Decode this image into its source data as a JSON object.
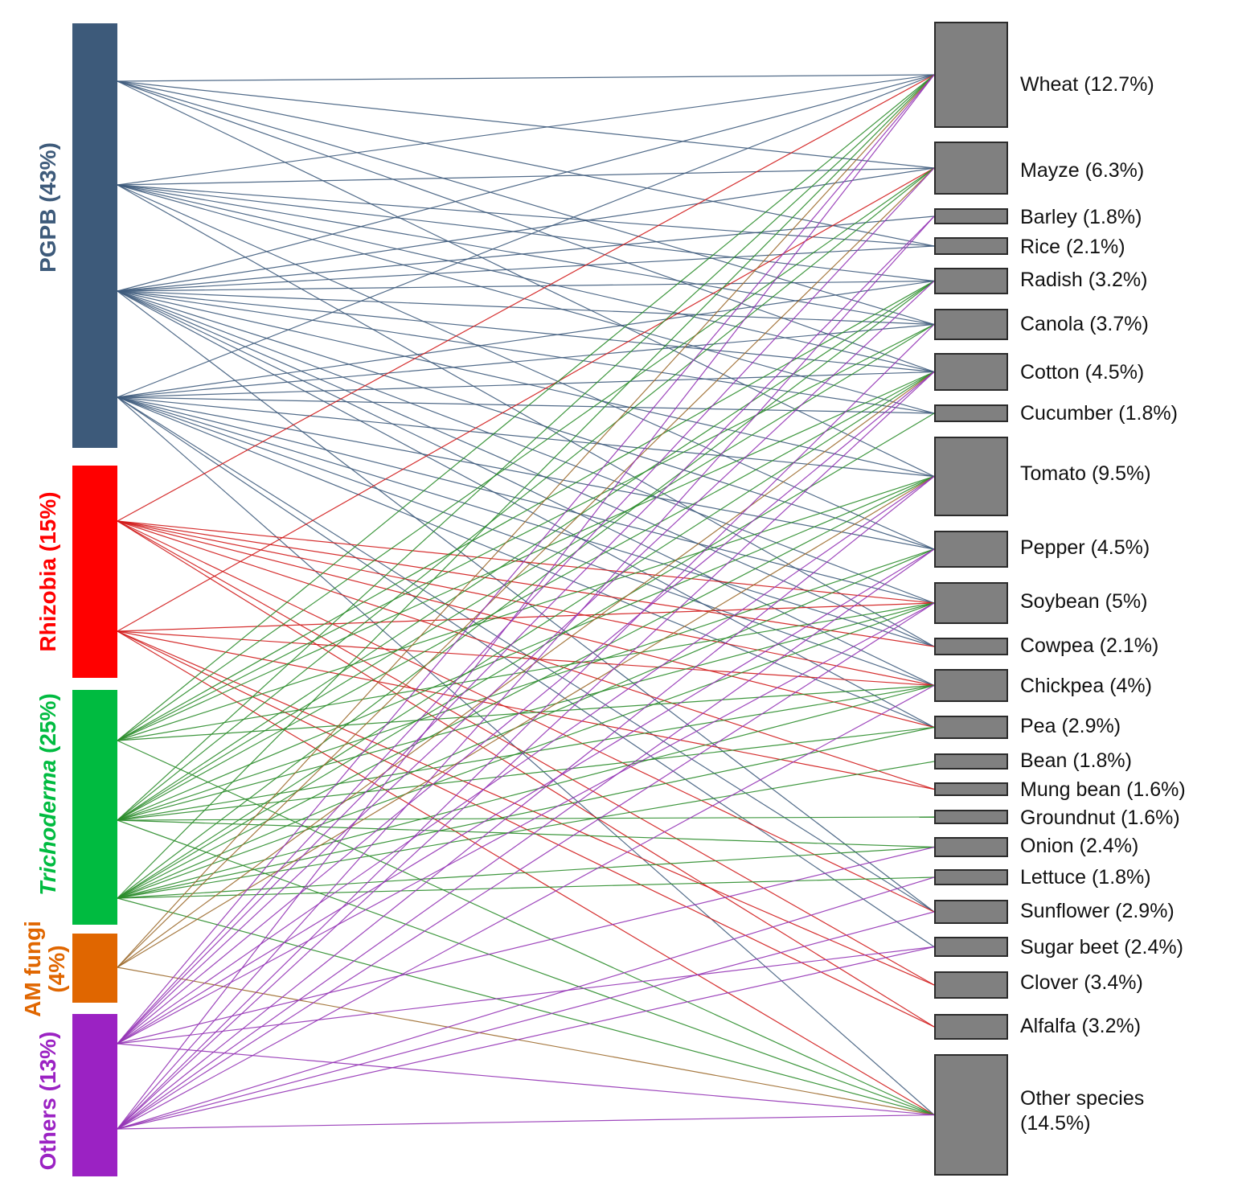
{
  "inoculants": [
    {
      "name": "PGPB",
      "share": "(43%)",
      "color": "#3d5a7a",
      "link_color": "#3e5b7c",
      "links": [
        [
          "Wheat",
          "Mayze",
          "Rice",
          "Canola",
          "Cotton",
          "Tomato"
        ],
        [
          "Wheat",
          "Mayze",
          "Rice",
          "Radish",
          "Canola",
          "Cotton",
          "Cucumber",
          "Pepper",
          "Cowpea"
        ],
        [
          "Wheat",
          "Mayze",
          "Barley",
          "Rice",
          "Radish",
          "Canola",
          "Cotton",
          "Cucumber",
          "Tomato",
          "Pepper",
          "Soybean",
          "Cowpea",
          "Chickpea",
          "Pea",
          "Sunflower"
        ],
        [
          "Wheat",
          "Radish",
          "Canola",
          "Cotton",
          "Cucumber",
          "Tomato",
          "Pepper",
          "Soybean",
          "Cowpea",
          "Chickpea",
          "Pea",
          "Sunflower",
          "Sugar beet",
          "Other species"
        ]
      ]
    },
    {
      "name": "Rhizobia",
      "share": "(15%)",
      "color": "#ff0000",
      "link_color": "#d01818",
      "links": [
        [
          "Wheat",
          "Soybean",
          "Cowpea",
          "Chickpea",
          "Pea",
          "Mung bean",
          "Sunflower",
          "Clover",
          "Alfalfa"
        ],
        [
          "Mayze",
          "Soybean",
          "Chickpea",
          "Mung bean",
          "Clover",
          "Alfalfa",
          "Other species"
        ]
      ]
    },
    {
      "name": "Trichoderma",
      "share": "(25%)",
      "color": "#00bb40",
      "link_color": "#2a8c2a",
      "links": [
        [
          "Wheat",
          "Mayze",
          "Radish",
          "Canola",
          "Cotton",
          "Tomato",
          "Soybean",
          "Chickpea",
          "Other species"
        ],
        [
          "Wheat",
          "Mayze",
          "Radish",
          "Canola",
          "Cotton",
          "Tomato",
          "Pepper",
          "Soybean",
          "Chickpea",
          "Pea",
          "Groundnut",
          "Onion",
          "Other species"
        ],
        [
          "Wheat",
          "Radish",
          "Cotton",
          "Cucumber",
          "Tomato",
          "Pepper",
          "Soybean",
          "Chickpea",
          "Pea",
          "Bean",
          "Onion",
          "Lettuce",
          "Other species"
        ]
      ]
    },
    {
      "name": "AM fungi",
      "share": "(4%)",
      "color": "#e06600",
      "link_color": "#9c6a2c",
      "links": [
        [
          "Wheat",
          "Mayze",
          "Cotton",
          "Tomato",
          "Other species"
        ]
      ]
    },
    {
      "name": "Others",
      "share": "(13%)",
      "color": "#9b22c3",
      "link_color": "#9433b5",
      "links": [
        [
          "Wheat",
          "Mayze",
          "Barley",
          "Radish",
          "Cotton",
          "Tomato",
          "Pepper",
          "Soybean",
          "Onion",
          "Sugar beet",
          "Other species"
        ],
        [
          "Wheat",
          "Barley",
          "Canola",
          "Cotton",
          "Tomato",
          "Pepper",
          "Soybean",
          "Chickpea",
          "Lettuce",
          "Sunflower",
          "Sugar beet",
          "Other species"
        ]
      ]
    }
  ],
  "crop_box_color": "#808080",
  "crops": [
    {
      "name": "Wheat",
      "share": "(12.7%)"
    },
    {
      "name": "Mayze",
      "share": "(6.3%)"
    },
    {
      "name": "Barley",
      "share": "(1.8%)"
    },
    {
      "name": "Rice",
      "share": "(2.1%)"
    },
    {
      "name": "Radish",
      "share": "(3.2%)"
    },
    {
      "name": "Canola",
      "share": "(3.7%)"
    },
    {
      "name": "Cotton",
      "share": "(4.5%)"
    },
    {
      "name": "Cucumber",
      "share": "(1.8%)"
    },
    {
      "name": "Tomato",
      "share": "(9.5%)"
    },
    {
      "name": "Pepper",
      "share": "(4.5%)"
    },
    {
      "name": "Soybean",
      "share": "(5%)"
    },
    {
      "name": "Cowpea",
      "share": "(2.1%)"
    },
    {
      "name": "Chickpea",
      "share": "(4%)"
    },
    {
      "name": "Pea",
      "share": "(2.9%)"
    },
    {
      "name": "Bean",
      "share": "(1.8%)"
    },
    {
      "name": "Mung bean",
      "share": "(1.6%)"
    },
    {
      "name": "Groundnut",
      "share": "(1.6%)"
    },
    {
      "name": "Onion",
      "share": "(2.4%)"
    },
    {
      "name": "Lettuce",
      "share": "(1.8%)"
    },
    {
      "name": "Sunflower",
      "share": "(2.9%)"
    },
    {
      "name": "Sugar beet",
      "share": "(2.4%)"
    },
    {
      "name": "Clover",
      "share": "(3.4%)"
    },
    {
      "name": "Alfalfa",
      "share": "(3.2%)"
    },
    {
      "name": "Other species",
      "share": "(14.5%)"
    }
  ]
}
